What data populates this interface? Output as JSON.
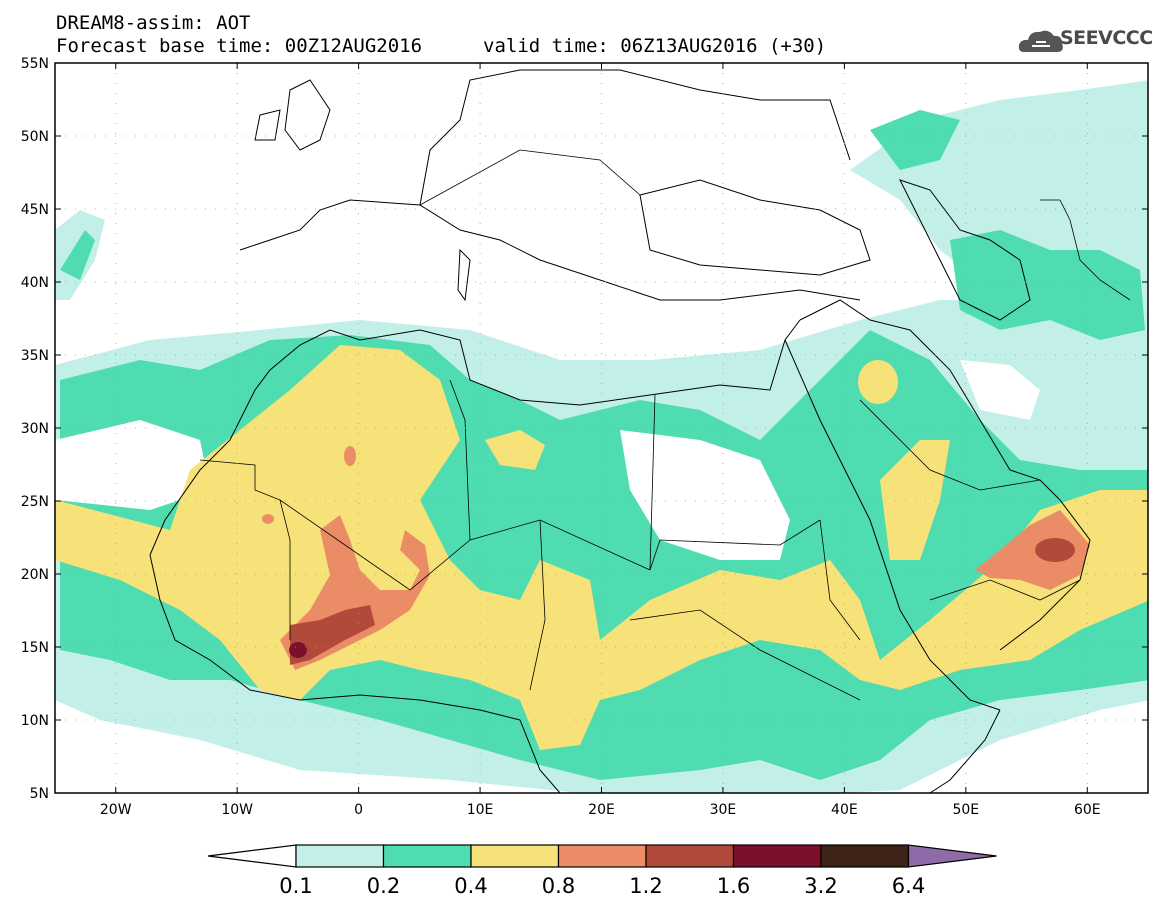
{
  "header": {
    "title": "DREAM8-assim: AOT",
    "base_time": "Forecast base time: 00Z12AUG2016",
    "valid_time": "valid time: 06Z13AUG2016 (+30)"
  },
  "logo": {
    "text": "SEEVCCC",
    "icon": "cloud-logo-icon"
  },
  "map": {
    "lat_labels": [
      "55N",
      "50N",
      "45N",
      "40N",
      "35N",
      "30N",
      "25N",
      "20N",
      "15N",
      "10N",
      "5N"
    ],
    "lon_labels": [
      "20W",
      "10W",
      "0",
      "10E",
      "20E",
      "30E",
      "40E",
      "50E",
      "60E"
    ],
    "lat_range": [
      5,
      55
    ],
    "lon_range": [
      -25,
      65
    ]
  },
  "colorbar": {
    "labels": [
      "0.1",
      "0.2",
      "0.4",
      "0.8",
      "1.2",
      "1.6",
      "3.2",
      "6.4"
    ],
    "colors": [
      "#ffffff",
      "#c2f0e8",
      "#4fdcb0",
      "#f7e27a",
      "#ea8c66",
      "#b24a3c",
      "#7b0f2c",
      "#3d2416",
      "#8e6aa8"
    ]
  },
  "colors": {
    "aot_0_1": "#c2f0e8",
    "aot_0_2": "#4fdcb0",
    "aot_0_4": "#f7e27a",
    "aot_0_8": "#ea8c66",
    "aot_1_2": "#b24a3c",
    "aot_1_6": "#7b0f2c"
  }
}
